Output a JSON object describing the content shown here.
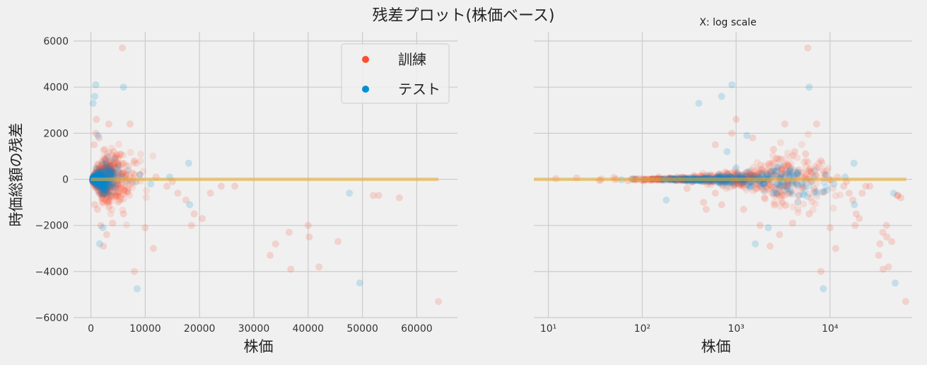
{
  "title": "残差プロット(株価ベース)",
  "colors": {
    "train": "#fc4f30",
    "test": "#008fd5",
    "zero_line": "#e5ae38",
    "grid": "#cbcbcb"
  },
  "chart_data": [
    {
      "type": "scatter",
      "title": "",
      "xlabel": "株価",
      "ylabel": "時価総額の残差",
      "xscale": "linear",
      "xlim": [
        -3200,
        67500
      ],
      "ylim": [
        -6000,
        6400
      ],
      "x_ticks": [
        0,
        10000,
        20000,
        30000,
        40000,
        50000,
        60000
      ],
      "y_ticks": [
        -6000,
        -4000,
        -2000,
        0,
        2000,
        4000,
        6000
      ],
      "grid": true,
      "legend": {
        "position": "top-right",
        "entries": [
          "訓練",
          "テスト"
        ]
      },
      "reference_line": {
        "y": 0,
        "x_range": [
          0,
          64000
        ]
      },
      "series": [
        {
          "name": "訓練",
          "color": "#fc4f30",
          "points": [
            [
              5800,
              5700
            ],
            [
              1000,
              2600
            ],
            [
              900,
              2000
            ],
            [
              1500,
              1800
            ],
            [
              3300,
              2400
            ],
            [
              7200,
              2400
            ],
            [
              600,
              1500
            ],
            [
              2500,
              1300
            ],
            [
              4200,
              1200
            ],
            [
              5500,
              1100
            ],
            [
              8000,
              800
            ],
            [
              14000,
              -300
            ],
            [
              16000,
              -600
            ],
            [
              17500,
              -900
            ],
            [
              18500,
              -2000
            ],
            [
              19000,
              -1500
            ],
            [
              20500,
              -1700
            ],
            [
              22000,
              -600
            ],
            [
              24000,
              -300
            ],
            [
              26500,
              -300
            ],
            [
              10000,
              -2100
            ],
            [
              11500,
              -3000
            ],
            [
              8000,
              -4000
            ],
            [
              2900,
              -2400
            ],
            [
              2300,
              -2900
            ],
            [
              4000,
              -1900
            ],
            [
              6000,
              -1500
            ],
            [
              1800,
              -2000
            ],
            [
              3100,
              -1000
            ],
            [
              36800,
              -3900
            ],
            [
              36500,
              -2300
            ],
            [
              34000,
              -2800
            ],
            [
              33000,
              -3300
            ],
            [
              40000,
              -2000
            ],
            [
              40200,
              -2500
            ],
            [
              42000,
              -3800
            ],
            [
              45500,
              -2700
            ],
            [
              52000,
              -700
            ],
            [
              53000,
              -700
            ],
            [
              56800,
              -800
            ],
            [
              64000,
              -5300
            ],
            [
              700,
              -1100
            ],
            [
              1200,
              -1300
            ],
            [
              2000,
              -800
            ],
            [
              2700,
              900
            ],
            [
              3600,
              600
            ],
            [
              4600,
              -700
            ],
            [
              5200,
              300
            ],
            [
              6800,
              -400
            ],
            [
              9000,
              200
            ],
            [
              12000,
              100
            ],
            [
              15000,
              -100
            ]
          ]
        },
        {
          "name": "テスト",
          "color": "#008fd5",
          "points": [
            [
              900,
              4100
            ],
            [
              700,
              3600
            ],
            [
              400,
              3300
            ],
            [
              6000,
              4000
            ],
            [
              1300,
              1900
            ],
            [
              18000,
              700
            ],
            [
              9000,
              200
            ],
            [
              11000,
              -200
            ],
            [
              1600,
              -2800
            ],
            [
              2200,
              -2100
            ],
            [
              8500,
              -4750
            ],
            [
              18200,
              -1100
            ],
            [
              47600,
              -600
            ],
            [
              49500,
              -4500
            ],
            [
              3500,
              -300
            ],
            [
              1000,
              500
            ],
            [
              2500,
              -600
            ],
            [
              4500,
              300
            ],
            [
              14500,
              100
            ]
          ]
        }
      ]
    },
    {
      "type": "scatter",
      "title": "",
      "annotation": "X: log scale",
      "xlabel": "株価",
      "xscale": "log",
      "xlim": [
        7,
        75000
      ],
      "ylim": [
        -6000,
        6400
      ],
      "x_ticks": [
        10,
        100,
        1000,
        10000
      ],
      "x_tick_labels": [
        "10¹",
        "10²",
        "10³",
        "10⁴"
      ],
      "y_ticks": [
        -6000,
        -4000,
        -2000,
        0,
        2000,
        4000,
        6000
      ],
      "grid": true,
      "reference_line": {
        "y": 0,
        "x_range": [
          7,
          65000
        ]
      },
      "series": [
        {
          "name": "訓練",
          "color": "#fc4f30",
          "points": [
            [
              5800,
              5700
            ],
            [
              1000,
              2600
            ],
            [
              900,
              2000
            ],
            [
              1500,
              1800
            ],
            [
              3300,
              2400
            ],
            [
              7200,
              2400
            ],
            [
              600,
              1500
            ],
            [
              2500,
              1300
            ],
            [
              4200,
              1200
            ],
            [
              5500,
              1100
            ],
            [
              8000,
              800
            ],
            [
              14000,
              -300
            ],
            [
              16000,
              -600
            ],
            [
              17500,
              -900
            ],
            [
              18500,
              -2000
            ],
            [
              19000,
              -1500
            ],
            [
              20500,
              -1700
            ],
            [
              22000,
              -600
            ],
            [
              24000,
              -300
            ],
            [
              26500,
              -300
            ],
            [
              10000,
              -2100
            ],
            [
              11500,
              -3000
            ],
            [
              8000,
              -4000
            ],
            [
              2900,
              -2400
            ],
            [
              2300,
              -2900
            ],
            [
              4000,
              -1900
            ],
            [
              6000,
              -1500
            ],
            [
              1800,
              -2000
            ],
            [
              3100,
              -1000
            ],
            [
              36800,
              -3900
            ],
            [
              36500,
              -2300
            ],
            [
              34000,
              -2800
            ],
            [
              33000,
              -3300
            ],
            [
              40000,
              -2000
            ],
            [
              40200,
              -2500
            ],
            [
              42000,
              -3800
            ],
            [
              45500,
              -2700
            ],
            [
              52000,
              -700
            ],
            [
              53000,
              -700
            ],
            [
              56800,
              -800
            ],
            [
              64000,
              -5300
            ],
            [
              700,
              -1100
            ],
            [
              1200,
              -1300
            ],
            [
              2000,
              -800
            ],
            [
              2700,
              900
            ],
            [
              3600,
              600
            ],
            [
              4600,
              -700
            ],
            [
              5200,
              300
            ],
            [
              6800,
              -400
            ],
            [
              9000,
              200
            ],
            [
              12000,
              100
            ],
            [
              15000,
              -100
            ],
            [
              12,
              30
            ],
            [
              20,
              60
            ],
            [
              35,
              -40
            ],
            [
              50,
              80
            ],
            [
              70,
              -60
            ],
            [
              150,
              100
            ],
            [
              300,
              -400
            ],
            [
              450,
              -1000
            ],
            [
              480,
              -1300
            ],
            [
              600,
              -600
            ]
          ]
        },
        {
          "name": "テスト",
          "color": "#008fd5",
          "points": [
            [
              900,
              4100
            ],
            [
              700,
              3600
            ],
            [
              400,
              3300
            ],
            [
              6000,
              4000
            ],
            [
              1300,
              1900
            ],
            [
              18000,
              700
            ],
            [
              9000,
              200
            ],
            [
              11000,
              -200
            ],
            [
              1600,
              -2800
            ],
            [
              2200,
              -2100
            ],
            [
              8500,
              -4750
            ],
            [
              18200,
              -1100
            ],
            [
              47600,
              -600
            ],
            [
              49500,
              -4500
            ],
            [
              3500,
              -300
            ],
            [
              1000,
              500
            ],
            [
              2500,
              -600
            ],
            [
              4500,
              300
            ],
            [
              14500,
              100
            ],
            [
              60,
              -20
            ],
            [
              180,
              -900
            ],
            [
              800,
              1200
            ]
          ]
        }
      ]
    }
  ]
}
